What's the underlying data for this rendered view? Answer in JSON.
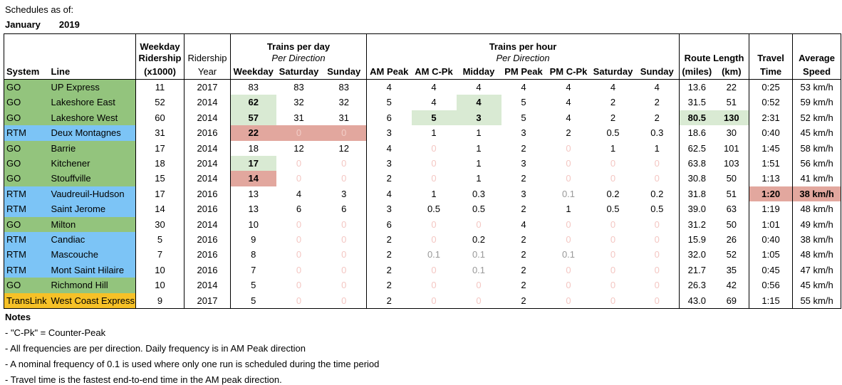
{
  "title": {
    "label": "Schedules as of:",
    "month": "January",
    "year": "2019"
  },
  "colors": {
    "go_green": "#93c47d",
    "rtm_blue": "#7cc4f6",
    "translink_yellow": "#f6c127",
    "highlight_green": "#d9ead3",
    "highlight_red": "#e2a79e",
    "zero_text_pink": "#f4c7c3",
    "nominal_text_gray": "#999999"
  },
  "table": {
    "header": {
      "system": "System",
      "line": "Line",
      "weekday_ridership": [
        "Weekday",
        "Ridership",
        "(x1000)"
      ],
      "ridership_year": [
        "Ridership",
        "Year"
      ],
      "trains_per_day": {
        "title": "Trains per day",
        "subtitle": "Per Direction",
        "cols": [
          "Weekday",
          "Saturday",
          "Sunday"
        ]
      },
      "trains_per_hour": {
        "title": "Trains per hour",
        "subtitle": "Per Direction",
        "cols": [
          "AM Peak",
          "AM C-Pk",
          "Midday",
          "PM Peak",
          "PM C-Pk",
          "Saturday",
          "Sunday"
        ]
      },
      "route_length": {
        "title": "Route Length",
        "cols": [
          "(miles)",
          "(km)"
        ]
      },
      "travel_time": [
        "Travel",
        "Time"
      ],
      "average_speed": [
        "Average",
        "Speed"
      ]
    },
    "rows": [
      {
        "system": "GO",
        "line": "UP Express",
        "color": "go",
        "values": [
          "11",
          "2017",
          "83",
          "83",
          "83",
          "4",
          "4",
          "4",
          "4",
          "4",
          "4",
          "4",
          "13.6",
          "22",
          "0:25",
          "53 km/h"
        ],
        "cls": {}
      },
      {
        "system": "GO",
        "line": "Lakeshore East",
        "color": "go",
        "values": [
          "52",
          "2014",
          "62",
          "32",
          "32",
          "5",
          "4",
          "4",
          "5",
          "4",
          "2",
          "2",
          "31.5",
          "51",
          "0:52",
          "59 km/h"
        ],
        "cls": {
          "2": "g",
          "7": "g"
        }
      },
      {
        "system": "GO",
        "line": "Lakeshore West",
        "color": "go",
        "values": [
          "60",
          "2014",
          "57",
          "31",
          "31",
          "6",
          "5",
          "3",
          "5",
          "4",
          "2",
          "2",
          "80.5",
          "130",
          "2:31",
          "52 km/h"
        ],
        "cls": {
          "2": "g",
          "6": "g",
          "7": "g",
          "12": "g",
          "13": "g"
        }
      },
      {
        "system": "RTM",
        "line": "Deux Montagnes",
        "color": "rtm",
        "values": [
          "31",
          "2016",
          "22",
          "0",
          "0",
          "3",
          "1",
          "1",
          "3",
          "2",
          "0.5",
          "0.3",
          "18.6",
          "30",
          "0:40",
          "45 km/h"
        ],
        "cls": {
          "2": "r",
          "3": "rz",
          "4": "rz"
        }
      },
      {
        "system": "GO",
        "line": "Barrie",
        "color": "go",
        "values": [
          "17",
          "2014",
          "18",
          "12",
          "12",
          "4",
          "0",
          "1",
          "2",
          "0",
          "1",
          "1",
          "62.5",
          "101",
          "1:45",
          "58 km/h"
        ],
        "cls": {}
      },
      {
        "system": "GO",
        "line": "Kitchener",
        "color": "go",
        "values": [
          "18",
          "2014",
          "17",
          "0",
          "0",
          "3",
          "0",
          "1",
          "3",
          "0",
          "0",
          "0",
          "63.8",
          "103",
          "1:51",
          "56 km/h"
        ],
        "cls": {
          "2": "g"
        }
      },
      {
        "system": "GO",
        "line": "Stouffville",
        "color": "go",
        "values": [
          "15",
          "2014",
          "14",
          "0",
          "0",
          "2",
          "0",
          "1",
          "2",
          "0",
          "0",
          "0",
          "30.8",
          "50",
          "1:13",
          "41 km/h"
        ],
        "cls": {
          "2": "r"
        }
      },
      {
        "system": "RTM",
        "line": "Vaudreuil-Hudson",
        "color": "rtm",
        "values": [
          "17",
          "2016",
          "13",
          "4",
          "3",
          "4",
          "1",
          "0.3",
          "3",
          "0.1",
          "0.2",
          "0.2",
          "31.8",
          "51",
          "1:20",
          "38 km/h"
        ],
        "cls": {
          "14": "r",
          "15": "r"
        }
      },
      {
        "system": "RTM",
        "line": "Saint Jerome",
        "color": "rtm",
        "values": [
          "14",
          "2016",
          "13",
          "6",
          "6",
          "3",
          "0.5",
          "0.5",
          "2",
          "1",
          "0.5",
          "0.5",
          "39.0",
          "63",
          "1:19",
          "48 km/h"
        ],
        "cls": {}
      },
      {
        "system": "GO",
        "line": "Milton",
        "color": "go",
        "values": [
          "30",
          "2014",
          "10",
          "0",
          "0",
          "6",
          "0",
          "0",
          "4",
          "0",
          "0",
          "0",
          "31.2",
          "50",
          "1:01",
          "49 km/h"
        ],
        "cls": {}
      },
      {
        "system": "RTM",
        "line": "Candiac",
        "color": "rtm",
        "values": [
          "5",
          "2016",
          "9",
          "0",
          "0",
          "2",
          "0",
          "0.2",
          "2",
          "0",
          "0",
          "0",
          "15.9",
          "26",
          "0:40",
          "38 km/h"
        ],
        "cls": {}
      },
      {
        "system": "RTM",
        "line": "Mascouche",
        "color": "rtm",
        "values": [
          "7",
          "2016",
          "8",
          "0",
          "0",
          "2",
          "0.1",
          "0.1",
          "2",
          "0.1",
          "0",
          "0",
          "32.0",
          "52",
          "1:05",
          "48 km/h"
        ],
        "cls": {}
      },
      {
        "system": "RTM",
        "line": "Mont Saint Hilaire",
        "color": "rtm",
        "values": [
          "10",
          "2016",
          "7",
          "0",
          "0",
          "2",
          "0",
          "0.1",
          "2",
          "0",
          "0",
          "0",
          "21.7",
          "35",
          "0:45",
          "47 km/h"
        ],
        "cls": {}
      },
      {
        "system": "GO",
        "line": "Richmond Hill",
        "color": "go",
        "values": [
          "10",
          "2014",
          "5",
          "0",
          "0",
          "2",
          "0",
          "0",
          "2",
          "0",
          "0",
          "0",
          "26.3",
          "42",
          "0:56",
          "45 km/h"
        ],
        "cls": {}
      },
      {
        "system": "TransLink",
        "line": "West Coast Express",
        "color": "translink",
        "values": [
          "9",
          "2017",
          "5",
          "0",
          "0",
          "2",
          "0",
          "0",
          "2",
          "0",
          "0",
          "0",
          "43.0",
          "69",
          "1:15",
          "55 km/h"
        ],
        "cls": {}
      }
    ]
  },
  "notes": {
    "title": "Notes",
    "items": [
      "- \"C-Pk\" = Counter-Peak",
      "- All frequencies are per direction.  Daily frequency is in AM Peak direction",
      "- A nominal frequency of 0.1 is used where only one run is scheduled during the time period",
      "- Travel time is the fastest end-to-end time in the AM peak direction."
    ]
  }
}
